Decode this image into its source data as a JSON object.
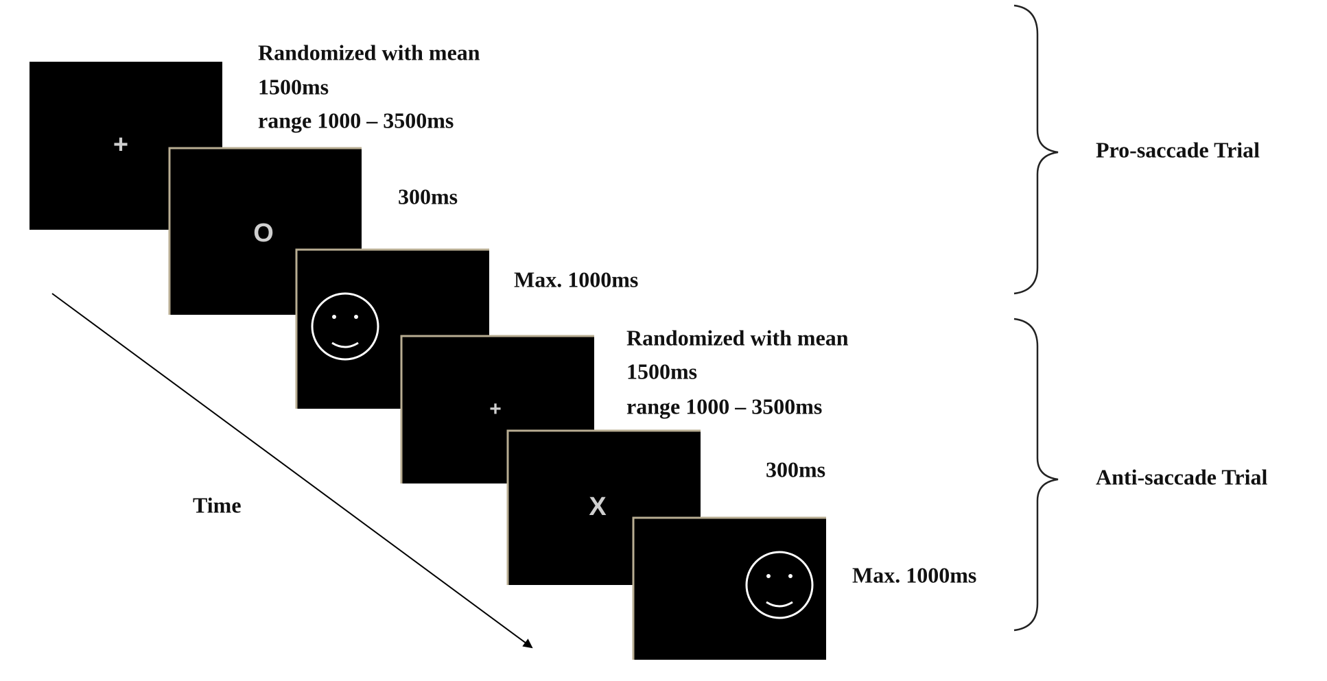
{
  "time_label": "Time",
  "trials": [
    {
      "label": "Pro-saccade Trial",
      "stages": [
        {
          "stimulus": "+",
          "duration": [
            "Randomized with mean",
            "1500ms",
            "range 1000 – 3500ms"
          ]
        },
        {
          "stimulus": "O",
          "duration": [
            "300ms"
          ]
        },
        {
          "duration": [
            "Max. 1000ms"
          ]
        }
      ]
    },
    {
      "label": "Anti-saccade Trial",
      "stages": [
        {
          "stimulus": "+",
          "duration": [
            "Randomized with mean",
            "1500ms",
            "range 1000 – 3500ms"
          ]
        },
        {
          "stimulus": "X",
          "duration": [
            "300ms"
          ]
        },
        {
          "duration": [
            "Max. 1000ms"
          ]
        }
      ]
    }
  ]
}
